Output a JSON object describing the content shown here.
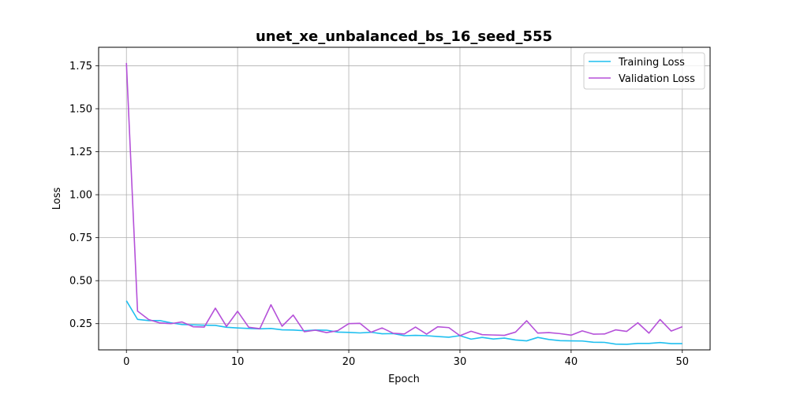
{
  "chart_data": {
    "type": "line",
    "title": "unet_xe_unbalanced_bs_16_seed_555",
    "xlabel": "Epoch",
    "ylabel": "Loss",
    "xlim": [
      -2.5,
      52.5
    ],
    "ylim": [
      0.0975,
      1.8575
    ],
    "xticks": [
      0,
      10,
      20,
      30,
      40,
      50
    ],
    "yticks": [
      0.25,
      0.5,
      0.75,
      1.0,
      1.25,
      1.5,
      1.75
    ],
    "xtick_labels": [
      "0",
      "10",
      "20",
      "30",
      "40",
      "50"
    ],
    "ytick_labels": [
      "0.25",
      "0.50",
      "0.75",
      "1.00",
      "1.25",
      "1.50",
      "1.75"
    ],
    "grid": true,
    "legend_position": "top-right",
    "x": [
      0,
      1,
      2,
      3,
      4,
      5,
      6,
      7,
      8,
      9,
      10,
      11,
      12,
      13,
      14,
      15,
      16,
      17,
      18,
      19,
      20,
      21,
      22,
      23,
      24,
      25,
      26,
      27,
      28,
      29,
      30,
      31,
      32,
      33,
      34,
      35,
      36,
      37,
      38,
      39,
      40,
      41,
      42,
      43,
      44,
      45,
      46,
      47,
      48,
      49,
      50
    ],
    "series": [
      {
        "name": "Training Loss",
        "color": "#1fbfef",
        "values": [
          0.383,
          0.275,
          0.268,
          0.268,
          0.255,
          0.245,
          0.243,
          0.241,
          0.24,
          0.229,
          0.225,
          0.222,
          0.22,
          0.222,
          0.214,
          0.213,
          0.209,
          0.213,
          0.212,
          0.201,
          0.199,
          0.196,
          0.2,
          0.191,
          0.192,
          0.18,
          0.182,
          0.18,
          0.175,
          0.171,
          0.18,
          0.16,
          0.17,
          0.161,
          0.166,
          0.155,
          0.15,
          0.17,
          0.158,
          0.151,
          0.15,
          0.149,
          0.142,
          0.141,
          0.131,
          0.13,
          0.135,
          0.135,
          0.14,
          0.134,
          0.134
        ]
      },
      {
        "name": "Validation Loss",
        "color": "#b551d9",
        "values": [
          1.766,
          0.323,
          0.274,
          0.254,
          0.25,
          0.26,
          0.232,
          0.23,
          0.34,
          0.234,
          0.322,
          0.229,
          0.221,
          0.36,
          0.235,
          0.3,
          0.203,
          0.212,
          0.198,
          0.209,
          0.25,
          0.252,
          0.2,
          0.225,
          0.194,
          0.19,
          0.23,
          0.189,
          0.232,
          0.227,
          0.18,
          0.206,
          0.186,
          0.184,
          0.182,
          0.201,
          0.267,
          0.195,
          0.198,
          0.192,
          0.183,
          0.208,
          0.189,
          0.19,
          0.214,
          0.205,
          0.255,
          0.195,
          0.274,
          0.207,
          0.232
        ]
      }
    ]
  }
}
